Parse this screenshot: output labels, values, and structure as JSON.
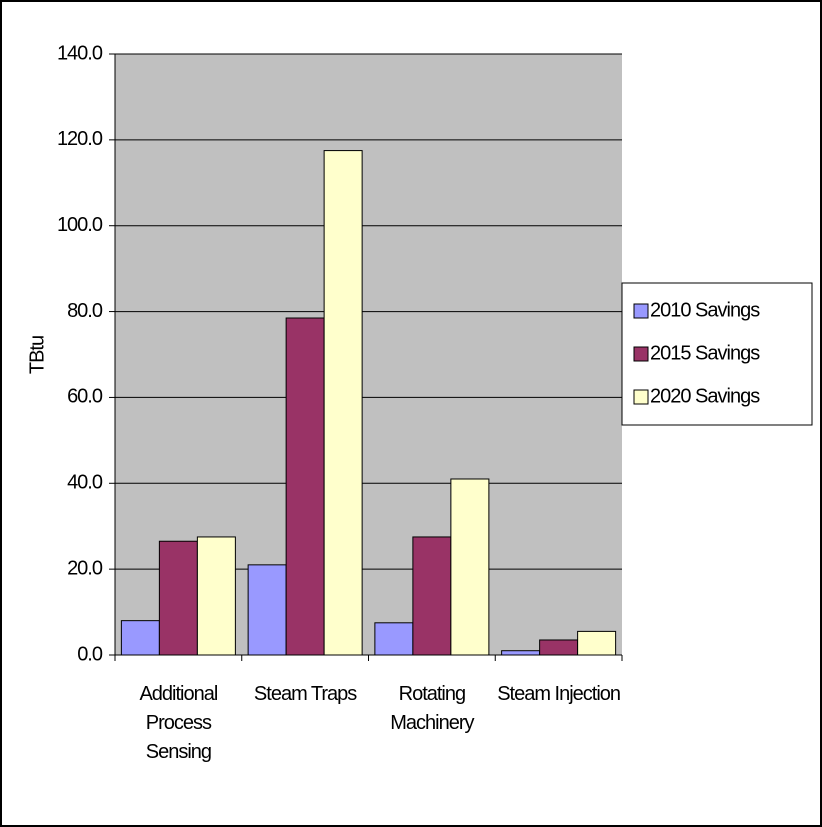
{
  "chart_data": {
    "type": "bar",
    "ylabel": "TBtu",
    "categories": [
      "Additional Process Sensing",
      "Steam Traps",
      "Rotating Machinery",
      "Steam Injection"
    ],
    "series": [
      {
        "name": "2010 Savings",
        "color": "#9999ff",
        "values": [
          8.0,
          21.0,
          7.5,
          1.0
        ]
      },
      {
        "name": "2015 Savings",
        "color": "#993366",
        "values": [
          26.5,
          78.5,
          27.5,
          3.5
        ]
      },
      {
        "name": "2020 Savings",
        "color": "#ffffcc",
        "values": [
          27.5,
          117.5,
          41.0,
          5.5
        ]
      }
    ],
    "ylim": [
      0,
      140
    ],
    "yticks": [
      {
        "value": 0,
        "label": "0.0"
      },
      {
        "value": 20,
        "label": "20.0"
      },
      {
        "value": 40,
        "label": "40.0"
      },
      {
        "value": 60,
        "label": "60.0"
      },
      {
        "value": 80,
        "label": "80.0"
      },
      {
        "value": 100,
        "label": "100.0"
      },
      {
        "value": 120,
        "label": "120.0"
      },
      {
        "value": 140,
        "label": "140.0"
      }
    ],
    "grid": true,
    "legend": "right"
  }
}
